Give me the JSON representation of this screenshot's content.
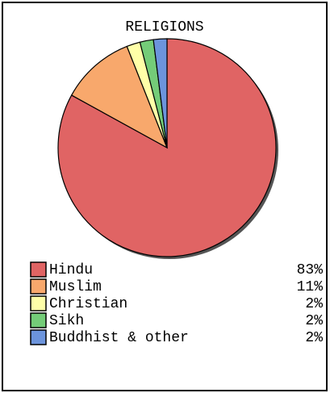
{
  "chart_data": {
    "type": "pie",
    "title": "RELIGIONS",
    "categories": [
      "Hindu",
      "Muslim",
      "Christian",
      "Sikh",
      "Buddhist & other"
    ],
    "values": [
      83,
      11,
      2,
      2,
      2
    ],
    "value_labels": [
      "83%",
      "11%",
      "2%",
      "2%",
      "2%"
    ],
    "colors": [
      "#e06464",
      "#f8a86c",
      "#ffffa8",
      "#74cc78",
      "#6c94dc"
    ]
  }
}
